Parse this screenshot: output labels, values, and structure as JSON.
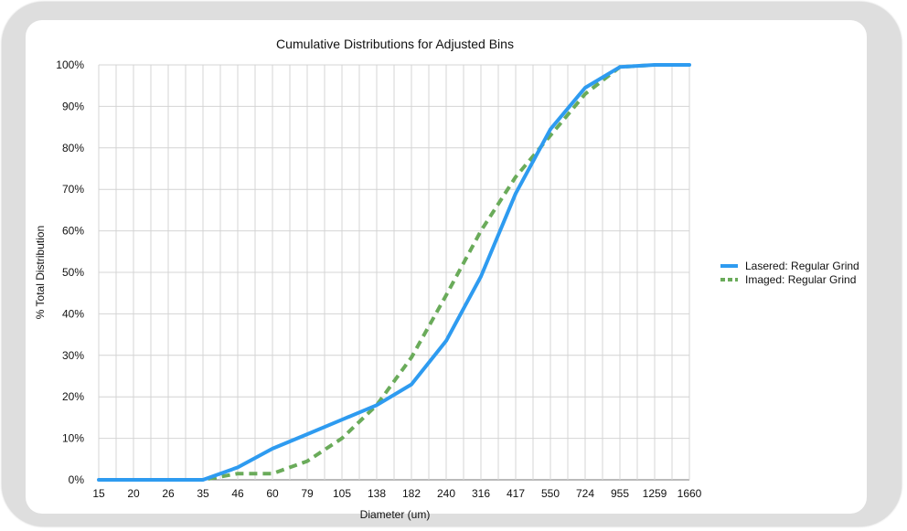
{
  "chart_data": {
    "type": "line",
    "title": "Cumulative Distributions for Adjusted Bins",
    "xlabel": "Diameter (um)",
    "ylabel": "% Total Distribution",
    "categories": [
      "15",
      "20",
      "26",
      "35",
      "46",
      "60",
      "79",
      "105",
      "138",
      "182",
      "240",
      "316",
      "417",
      "550",
      "724",
      "955",
      "1259",
      "1660"
    ],
    "ylim": [
      0,
      100
    ],
    "y_ticks": [
      "0%",
      "10%",
      "20%",
      "30%",
      "40%",
      "50%",
      "60%",
      "70%",
      "80%",
      "90%",
      "100%"
    ],
    "grid": true,
    "legend_position": "right",
    "series": [
      {
        "name": "Lasered: Regular Grind",
        "color": "#2e9bf0",
        "style": "solid",
        "values": [
          0,
          0,
          0,
          0,
          3,
          7.5,
          11,
          14.5,
          18,
          23,
          33.5,
          49,
          69,
          84.5,
          94.5,
          99.5,
          100,
          100
        ]
      },
      {
        "name": "Imaged: Regular Grind",
        "color": "#6aab5a",
        "style": "dashed",
        "values": [
          0,
          0,
          0,
          0,
          1.5,
          1.5,
          4.5,
          10,
          18,
          29.5,
          44.5,
          60,
          73,
          83,
          93,
          99.5,
          100,
          100
        ]
      }
    ]
  }
}
